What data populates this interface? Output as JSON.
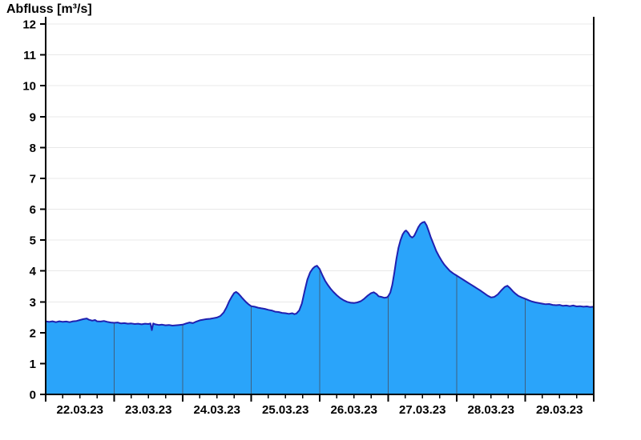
{
  "page": {
    "background": "#ffffff"
  },
  "chart_data": {
    "type": "area",
    "title": "Abfluss [m³/s]",
    "xlabel": "",
    "ylabel": "Abfluss [m³/s]",
    "x_tick_labels": [
      "22.03.23",
      "23.03.23",
      "24.03.23",
      "25.03.23",
      "26.03.23",
      "27.03.23",
      "28.03.23",
      "29.03.23"
    ],
    "x_description": "days since 22.03.23 00:00, axis spans 8 days to 30.03.23 00:00",
    "xlim_days": [
      0,
      8
    ],
    "ylim": [
      0,
      12
    ],
    "y_ticks": [
      0,
      1,
      2,
      3,
      4,
      5,
      6,
      7,
      8,
      9,
      10,
      11,
      12
    ],
    "x_minor_ticks_per_day": 4,
    "grid": {
      "horizontal": true,
      "vertical_day_separators_inside_area": true
    },
    "legend": "none",
    "colors": {
      "area_fill": "#2aa4fa",
      "line": "#2020b0",
      "day_separator": "#3f5f7f",
      "grid": "#e8e8e8",
      "axis": "#000000",
      "text": "#000000"
    },
    "series": [
      {
        "name": "Abfluss",
        "unit": "m³/s",
        "points": [
          [
            0.0,
            2.37
          ],
          [
            0.05,
            2.35
          ],
          [
            0.1,
            2.37
          ],
          [
            0.15,
            2.34
          ],
          [
            0.2,
            2.37
          ],
          [
            0.25,
            2.35
          ],
          [
            0.3,
            2.36
          ],
          [
            0.35,
            2.34
          ],
          [
            0.4,
            2.37
          ],
          [
            0.45,
            2.38
          ],
          [
            0.5,
            2.41
          ],
          [
            0.55,
            2.44
          ],
          [
            0.6,
            2.46
          ],
          [
            0.63,
            2.42
          ],
          [
            0.68,
            2.39
          ],
          [
            0.72,
            2.41
          ],
          [
            0.75,
            2.37
          ],
          [
            0.8,
            2.36
          ],
          [
            0.85,
            2.38
          ],
          [
            0.9,
            2.35
          ],
          [
            0.95,
            2.33
          ],
          [
            1.0,
            2.32
          ],
          [
            1.05,
            2.33
          ],
          [
            1.1,
            2.3
          ],
          [
            1.15,
            2.31
          ],
          [
            1.2,
            2.29
          ],
          [
            1.25,
            2.3
          ],
          [
            1.3,
            2.28
          ],
          [
            1.35,
            2.29
          ],
          [
            1.4,
            2.27
          ],
          [
            1.45,
            2.29
          ],
          [
            1.5,
            2.28
          ],
          [
            1.53,
            2.3
          ],
          [
            1.55,
            2.08
          ],
          [
            1.57,
            2.3
          ],
          [
            1.6,
            2.27
          ],
          [
            1.65,
            2.25
          ],
          [
            1.7,
            2.26
          ],
          [
            1.75,
            2.24
          ],
          [
            1.8,
            2.25
          ],
          [
            1.85,
            2.23
          ],
          [
            1.9,
            2.24
          ],
          [
            1.95,
            2.25
          ],
          [
            2.0,
            2.26
          ],
          [
            2.05,
            2.3
          ],
          [
            2.1,
            2.33
          ],
          [
            2.15,
            2.31
          ],
          [
            2.2,
            2.36
          ],
          [
            2.25,
            2.4
          ],
          [
            2.3,
            2.42
          ],
          [
            2.35,
            2.44
          ],
          [
            2.4,
            2.45
          ],
          [
            2.45,
            2.47
          ],
          [
            2.5,
            2.49
          ],
          [
            2.55,
            2.54
          ],
          [
            2.6,
            2.66
          ],
          [
            2.64,
            2.82
          ],
          [
            2.68,
            3.02
          ],
          [
            2.72,
            3.18
          ],
          [
            2.75,
            3.28
          ],
          [
            2.78,
            3.32
          ],
          [
            2.81,
            3.27
          ],
          [
            2.84,
            3.2
          ],
          [
            2.87,
            3.12
          ],
          [
            2.9,
            3.05
          ],
          [
            2.93,
            2.98
          ],
          [
            2.96,
            2.92
          ],
          [
            3.0,
            2.86
          ],
          [
            3.05,
            2.84
          ],
          [
            3.1,
            2.81
          ],
          [
            3.15,
            2.79
          ],
          [
            3.2,
            2.77
          ],
          [
            3.25,
            2.74
          ],
          [
            3.3,
            2.72
          ],
          [
            3.35,
            2.68
          ],
          [
            3.4,
            2.67
          ],
          [
            3.45,
            2.64
          ],
          [
            3.5,
            2.63
          ],
          [
            3.55,
            2.61
          ],
          [
            3.6,
            2.63
          ],
          [
            3.63,
            2.6
          ],
          [
            3.66,
            2.62
          ],
          [
            3.7,
            2.72
          ],
          [
            3.74,
            2.95
          ],
          [
            3.78,
            3.35
          ],
          [
            3.82,
            3.72
          ],
          [
            3.86,
            3.95
          ],
          [
            3.9,
            4.08
          ],
          [
            3.93,
            4.14
          ],
          [
            3.96,
            4.17
          ],
          [
            4.0,
            4.06
          ],
          [
            4.04,
            3.86
          ],
          [
            4.08,
            3.68
          ],
          [
            4.12,
            3.54
          ],
          [
            4.16,
            3.42
          ],
          [
            4.2,
            3.32
          ],
          [
            4.25,
            3.21
          ],
          [
            4.3,
            3.12
          ],
          [
            4.35,
            3.05
          ],
          [
            4.4,
            3.0
          ],
          [
            4.45,
            2.97
          ],
          [
            4.5,
            2.96
          ],
          [
            4.55,
            2.98
          ],
          [
            4.6,
            3.02
          ],
          [
            4.65,
            3.1
          ],
          [
            4.7,
            3.2
          ],
          [
            4.75,
            3.28
          ],
          [
            4.79,
            3.31
          ],
          [
            4.83,
            3.25
          ],
          [
            4.86,
            3.18
          ],
          [
            4.9,
            3.16
          ],
          [
            4.94,
            3.13
          ],
          [
            4.98,
            3.14
          ],
          [
            5.0,
            3.18
          ],
          [
            5.03,
            3.3
          ],
          [
            5.06,
            3.55
          ],
          [
            5.09,
            3.95
          ],
          [
            5.12,
            4.4
          ],
          [
            5.15,
            4.75
          ],
          [
            5.18,
            5.0
          ],
          [
            5.21,
            5.18
          ],
          [
            5.24,
            5.28
          ],
          [
            5.26,
            5.31
          ],
          [
            5.29,
            5.24
          ],
          [
            5.32,
            5.13
          ],
          [
            5.35,
            5.08
          ],
          [
            5.38,
            5.14
          ],
          [
            5.41,
            5.28
          ],
          [
            5.44,
            5.42
          ],
          [
            5.47,
            5.52
          ],
          [
            5.5,
            5.57
          ],
          [
            5.53,
            5.59
          ],
          [
            5.56,
            5.48
          ],
          [
            5.59,
            5.3
          ],
          [
            5.62,
            5.1
          ],
          [
            5.66,
            4.88
          ],
          [
            5.7,
            4.65
          ],
          [
            5.74,
            4.48
          ],
          [
            5.78,
            4.33
          ],
          [
            5.82,
            4.2
          ],
          [
            5.86,
            4.1
          ],
          [
            5.9,
            4.0
          ],
          [
            5.95,
            3.92
          ],
          [
            6.0,
            3.85
          ],
          [
            6.05,
            3.78
          ],
          [
            6.1,
            3.71
          ],
          [
            6.15,
            3.64
          ],
          [
            6.2,
            3.57
          ],
          [
            6.25,
            3.5
          ],
          [
            6.3,
            3.43
          ],
          [
            6.35,
            3.36
          ],
          [
            6.4,
            3.28
          ],
          [
            6.45,
            3.2
          ],
          [
            6.5,
            3.14
          ],
          [
            6.55,
            3.16
          ],
          [
            6.6,
            3.24
          ],
          [
            6.65,
            3.37
          ],
          [
            6.7,
            3.48
          ],
          [
            6.74,
            3.52
          ],
          [
            6.78,
            3.44
          ],
          [
            6.82,
            3.34
          ],
          [
            6.86,
            3.26
          ],
          [
            6.9,
            3.19
          ],
          [
            6.95,
            3.14
          ],
          [
            7.0,
            3.1
          ],
          [
            7.05,
            3.05
          ],
          [
            7.1,
            3.01
          ],
          [
            7.15,
            2.98
          ],
          [
            7.2,
            2.96
          ],
          [
            7.25,
            2.94
          ],
          [
            7.3,
            2.92
          ],
          [
            7.35,
            2.93
          ],
          [
            7.4,
            2.9
          ],
          [
            7.45,
            2.89
          ],
          [
            7.5,
            2.9
          ],
          [
            7.55,
            2.87
          ],
          [
            7.6,
            2.88
          ],
          [
            7.65,
            2.86
          ],
          [
            7.7,
            2.88
          ],
          [
            7.75,
            2.85
          ],
          [
            7.8,
            2.86
          ],
          [
            7.85,
            2.84
          ],
          [
            7.9,
            2.85
          ],
          [
            7.95,
            2.83
          ],
          [
            8.0,
            2.84
          ]
        ]
      }
    ]
  }
}
